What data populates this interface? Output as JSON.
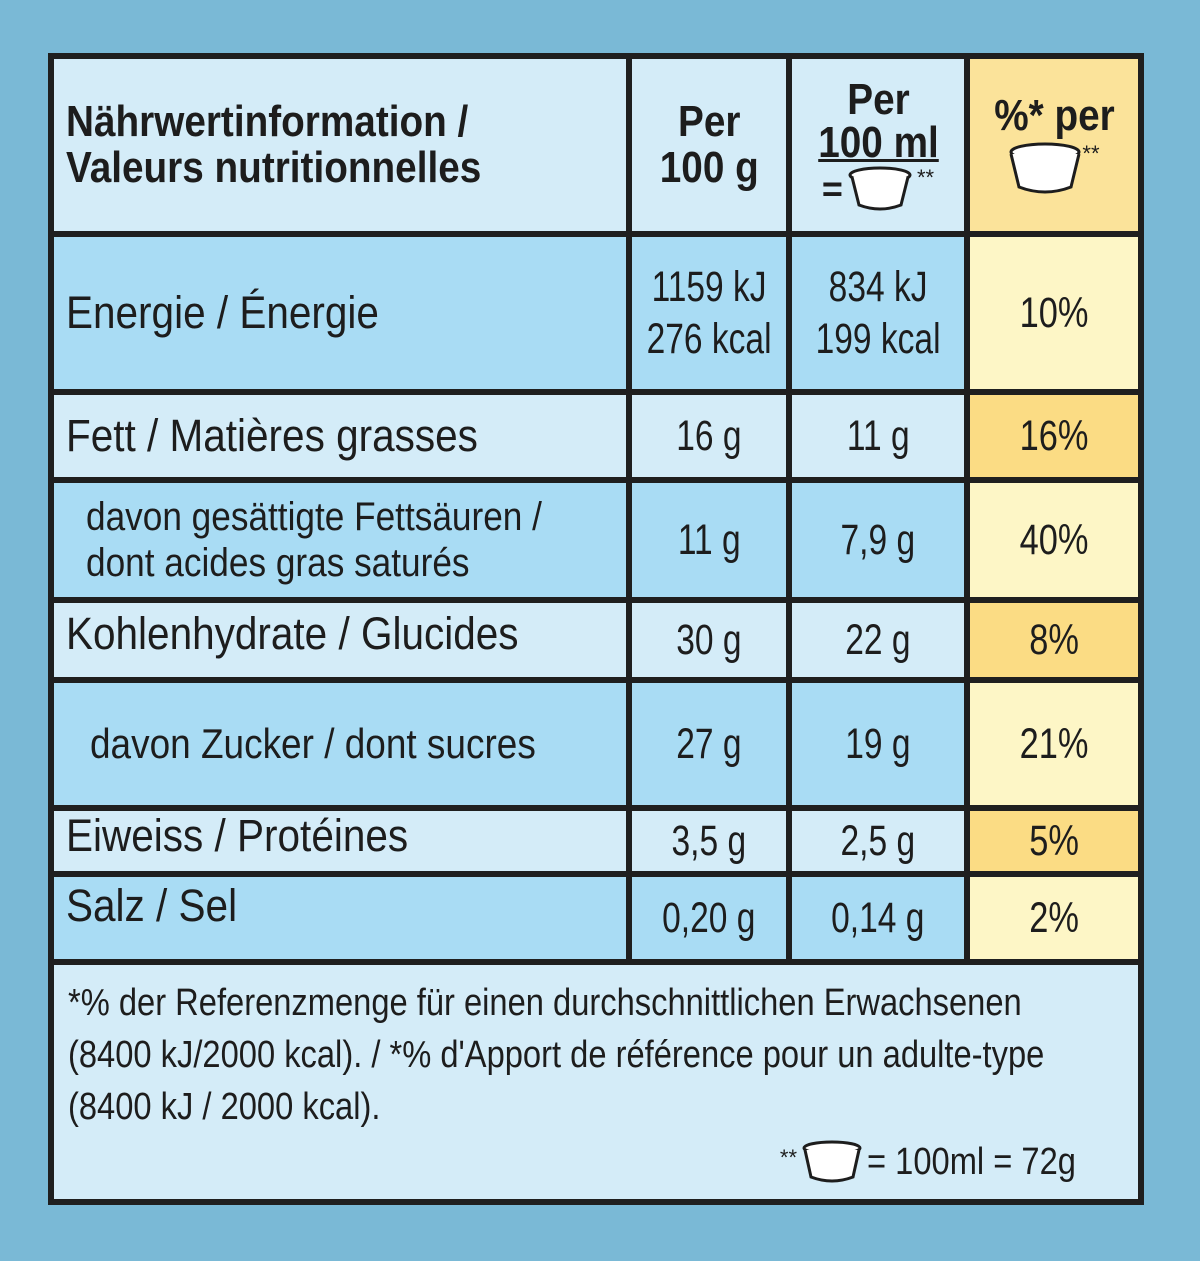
{
  "header": {
    "label_line1": "Nährwertinformation /",
    "label_line2": "Valeurs nutritionnelles",
    "col1_line1": "Per",
    "col1_line2": "100 g",
    "col2_line1": "Per",
    "col2_line2": "100 ml",
    "col2_eq": "=",
    "col2_stars": "**",
    "col3_line1": "%* per",
    "col3_stars": "**"
  },
  "rows": [
    {
      "label": "Energie / Énergie",
      "per100g": [
        "1159 kJ",
        "276 kcal"
      ],
      "per100ml": [
        "834 kJ",
        "199 kcal"
      ],
      "pct": "10%"
    },
    {
      "label": "Fett / Matières grasses",
      "per100g": "16 g",
      "per100ml": "11 g",
      "pct": "16%"
    },
    {
      "label_line1": "davon gesättigte Fettsäuren /",
      "label_line2": "dont acides gras saturés",
      "per100g": "11 g",
      "per100ml": "7,9 g",
      "pct": "40%"
    },
    {
      "label": "Kohlenhydrate / Glucides",
      "per100g": "30 g",
      "per100ml": "22 g",
      "pct": "8%"
    },
    {
      "label": "davon Zucker / dont sucres",
      "per100g": "27 g",
      "per100ml": "19 g",
      "pct": "21%"
    },
    {
      "label": "Eiweiss / Protéines",
      "per100g": "3,5 g",
      "per100ml": "2,5 g",
      "pct": "5%"
    },
    {
      "label": "Salz / Sel",
      "per100g": "0,20 g",
      "per100ml": "0,14 g",
      "pct": "2%"
    }
  ],
  "footnote": {
    "line1": "*% der Referenzmenge für einen durchschnittlichen Erwachsenen",
    "line2": "(8400 kJ/2000 kcal). / *% d'Apport de référence pour un adulte-type",
    "line3": "(8400 kJ / 2000 kcal).",
    "serving_stars": "**",
    "serving_text": "= 100ml = 72g"
  },
  "icons": {
    "serving": "ice-cream-tub-icon"
  },
  "colors": {
    "background": "#7ab9d6",
    "light_blue": "#d4ecf8",
    "mid_blue": "#a9dcf4",
    "pale_yellow": "#fdf6c6",
    "yellow": "#fbdc84"
  }
}
